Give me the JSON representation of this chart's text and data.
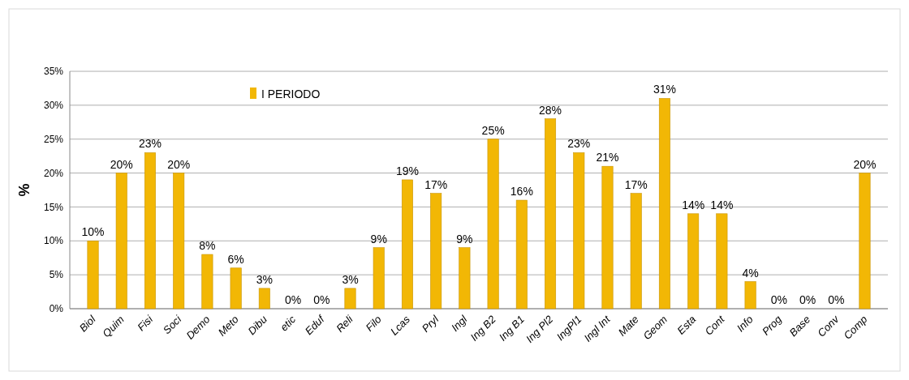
{
  "chart_data": {
    "type": "bar",
    "ylabel": "%",
    "categories": [
      "Biol",
      "Quim",
      "Fisi",
      "Soci",
      "Demo",
      "Meto",
      "Dibu",
      "etic",
      "Eduf",
      "Reli",
      "Filo",
      "Lcas",
      "Pryl",
      "Ingl",
      "Ing B2",
      "Ing B1",
      "Ing Pl2",
      "IngPl1",
      "Ingl Int",
      "Mate",
      "Geom",
      "Esta",
      "Cont",
      "Info",
      "Prog",
      "Base",
      "Conv",
      "Comp"
    ],
    "series": [
      {
        "name": "I PERIODO",
        "color": "#f2b705",
        "values": [
          10,
          20,
          23,
          20,
          8,
          6,
          3,
          0,
          0,
          3,
          9,
          19,
          17,
          9,
          25,
          16,
          28,
          23,
          21,
          17,
          31,
          14,
          14,
          4,
          0,
          0,
          0,
          20
        ],
        "value_labels": [
          "10%",
          "20%",
          "23%",
          "20%",
          "8%",
          "6%",
          "3%",
          "0%",
          "0%",
          "3%",
          "9%",
          "19%",
          "17%",
          "9%",
          "25%",
          "16%",
          "28%",
          "23%",
          "21%",
          "17%",
          "31%",
          "14%",
          "14%",
          "4%",
          "0%",
          "0%",
          "0%",
          "20%"
        ]
      }
    ],
    "ylim": [
      0,
      35
    ],
    "yticks": [
      {
        "value": 0,
        "label": "0%"
      },
      {
        "value": 5,
        "label": "5%"
      },
      {
        "value": 10,
        "label": "10%"
      },
      {
        "value": 15,
        "label": "15%"
      },
      {
        "value": 20,
        "label": "20%"
      },
      {
        "value": 25,
        "label": "25%"
      },
      {
        "value": 30,
        "label": "30%"
      },
      {
        "value": 35,
        "label": "35%"
      }
    ],
    "grid": "y",
    "legend": "top left"
  }
}
